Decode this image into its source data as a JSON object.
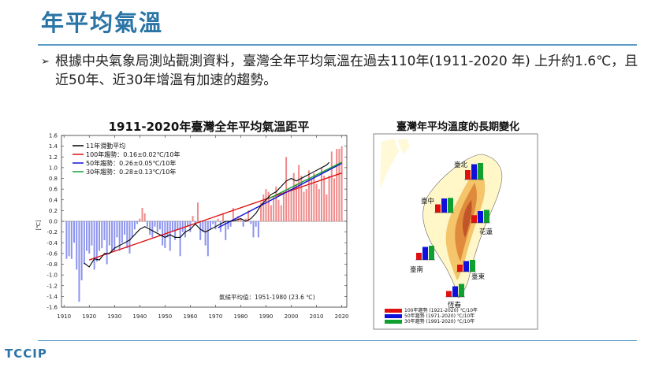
{
  "slide": {
    "title": "年平均氣溫",
    "bullet_mark": "➢",
    "bullet_text": "根據中央氣象局測站觀測資料，臺灣全年平均氣溫在過去110年(1911-2020 年) 上升約1.6℃，且近50年、近30年增溫有加速的趨勢。",
    "logo": "TCCIP"
  },
  "colors": {
    "title": "#2a74a6",
    "positive_bar": "#ef8a8a",
    "negative_bar": "#8c93ee",
    "trend_100": "#e01010",
    "trend_50": "#1010dd",
    "trend_30": "#10a030",
    "smooth": "#000000"
  },
  "chart_data": [
    {
      "type": "bar",
      "title": "1911-2020年臺灣全年平均氣溫距平",
      "xlabel": "",
      "ylabel": "[℃]",
      "xlim": [
        1909,
        2022
      ],
      "ylim": [
        -1.6,
        1.6
      ],
      "x_ticks": [
        1910,
        1920,
        1930,
        1940,
        1950,
        1960,
        1970,
        1980,
        1990,
        2000,
        2010,
        2020
      ],
      "y_ticks": [
        -1.6,
        -1.4,
        -1.2,
        -1.0,
        -0.8,
        -0.6,
        -0.4,
        -0.2,
        0.0,
        0.2,
        0.4,
        0.6,
        0.8,
        1.0,
        1.2,
        1.4,
        1.6
      ],
      "years": [
        1911,
        1912,
        1913,
        1914,
        1915,
        1916,
        1917,
        1918,
        1919,
        1920,
        1921,
        1922,
        1923,
        1924,
        1925,
        1926,
        1927,
        1928,
        1929,
        1930,
        1931,
        1932,
        1933,
        1934,
        1935,
        1936,
        1937,
        1938,
        1939,
        1940,
        1941,
        1942,
        1943,
        1944,
        1945,
        1946,
        1947,
        1948,
        1949,
        1950,
        1951,
        1952,
        1953,
        1954,
        1955,
        1956,
        1957,
        1958,
        1959,
        1960,
        1961,
        1962,
        1963,
        1964,
        1965,
        1966,
        1967,
        1968,
        1969,
        1970,
        1971,
        1972,
        1973,
        1974,
        1975,
        1976,
        1977,
        1978,
        1979,
        1980,
        1981,
        1982,
        1983,
        1984,
        1985,
        1986,
        1987,
        1988,
        1989,
        1990,
        1991,
        1992,
        1993,
        1994,
        1995,
        1996,
        1997,
        1998,
        1999,
        2000,
        2001,
        2002,
        2003,
        2004,
        2005,
        2006,
        2007,
        2008,
        2009,
        2010,
        2011,
        2012,
        2013,
        2014,
        2015,
        2016,
        2017,
        2018,
        2019,
        2020
      ],
      "anomalies": [
        -0.7,
        -0.65,
        -0.7,
        -0.4,
        -0.9,
        -1.5,
        -1.1,
        -0.8,
        -0.55,
        -0.6,
        -0.45,
        -0.9,
        -0.75,
        -0.55,
        -0.5,
        -0.35,
        -0.8,
        -0.45,
        -0.55,
        -0.55,
        -0.3,
        -0.55,
        -0.4,
        -0.25,
        -0.5,
        -0.6,
        -0.3,
        -0.15,
        -0.05,
        0.05,
        0.25,
        0.15,
        -0.1,
        -0.25,
        -0.3,
        -0.1,
        -0.2,
        -0.15,
        -0.45,
        -0.5,
        -0.3,
        -0.55,
        -0.2,
        -0.35,
        -0.15,
        -0.65,
        -0.2,
        -0.3,
        -0.1,
        -0.2,
        0.1,
        -0.05,
        0.35,
        -0.35,
        -0.2,
        -0.45,
        -0.65,
        -0.15,
        -0.05,
        -0.15,
        0.05,
        -0.2,
        0.15,
        -0.35,
        -0.15,
        -0.1,
        0.25,
        0.05,
        0.1,
        0.05,
        -0.1,
        0.05,
        0.2,
        -0.05,
        -0.3,
        -0.1,
        -0.3,
        0.35,
        0.5,
        0.6,
        0.55,
        0.3,
        0.45,
        0.65,
        0.4,
        0.3,
        0.55,
        1.2,
        0.6,
        0.6,
        0.9,
        0.7,
        1.05,
        0.85,
        0.55,
        0.6,
        0.95,
        0.8,
        0.9,
        0.7,
        0.6,
        1.0,
        0.85,
        0.5,
        0.85,
        1.3,
        0.8,
        1.35,
        1.35,
        1.4
      ],
      "smooth_11yr": [
        [
          1918,
          -0.78
        ],
        [
          1920,
          -0.85
        ],
        [
          1922,
          -0.7
        ],
        [
          1924,
          -0.72
        ],
        [
          1926,
          -0.6
        ],
        [
          1928,
          -0.6
        ],
        [
          1930,
          -0.5
        ],
        [
          1932,
          -0.45
        ],
        [
          1934,
          -0.4
        ],
        [
          1936,
          -0.35
        ],
        [
          1938,
          -0.25
        ],
        [
          1940,
          -0.15
        ],
        [
          1942,
          -0.1
        ],
        [
          1944,
          -0.15
        ],
        [
          1946,
          -0.2
        ],
        [
          1948,
          -0.25
        ],
        [
          1950,
          -0.3
        ],
        [
          1952,
          -0.25
        ],
        [
          1954,
          -0.3
        ],
        [
          1956,
          -0.3
        ],
        [
          1958,
          -0.2
        ],
        [
          1960,
          -0.15
        ],
        [
          1962,
          -0.05
        ],
        [
          1964,
          -0.15
        ],
        [
          1966,
          -0.2
        ],
        [
          1968,
          -0.15
        ],
        [
          1970,
          -0.1
        ],
        [
          1972,
          -0.05
        ],
        [
          1974,
          0.0
        ],
        [
          1976,
          0.0
        ],
        [
          1978,
          0.02
        ],
        [
          1980,
          0.05
        ],
        [
          1982,
          0.0
        ],
        [
          1984,
          0.05
        ],
        [
          1986,
          0.15
        ],
        [
          1988,
          0.3
        ],
        [
          1990,
          0.4
        ],
        [
          1992,
          0.5
        ],
        [
          1994,
          0.55
        ],
        [
          1996,
          0.65
        ],
        [
          1998,
          0.75
        ],
        [
          2000,
          0.8
        ],
        [
          2002,
          0.75
        ],
        [
          2004,
          0.8
        ],
        [
          2006,
          0.85
        ],
        [
          2008,
          0.9
        ],
        [
          2010,
          0.95
        ],
        [
          2012,
          1.0
        ],
        [
          2014,
          1.05
        ],
        [
          2015,
          1.1
        ]
      ],
      "legend": [
        {
          "label": "11年滑動平均",
          "color": "#000000"
        },
        {
          "label": "100年趨勢：0.16±0.02℃/10年",
          "color": "#e01010"
        },
        {
          "label": "50年趨勢：0.26±0.05℃/10年",
          "color": "#1010dd"
        },
        {
          "label": "30年趨勢：0.28±0.13℃/10年",
          "color": "#10a030"
        }
      ],
      "trends": [
        {
          "name": "100年趨勢",
          "start": [
            1920,
            -0.72
          ],
          "end": [
            2020,
            0.9
          ]
        },
        {
          "name": "50年趨勢",
          "start": [
            1971,
            -0.12
          ],
          "end": [
            2020,
            1.08
          ]
        },
        {
          "name": "30年趨勢",
          "start": [
            1991,
            0.42
          ],
          "end": [
            2020,
            1.1
          ]
        }
      ],
      "note": "氣候平均值：1951-1980 (23.6 ℃)"
    },
    {
      "type": "bar",
      "title": "臺灣年平均溫度的長期變化",
      "stations": [
        {
          "name": "臺北",
          "values": [
            0.16,
            0.26,
            0.28
          ]
        },
        {
          "name": "臺中",
          "values": [
            0.14,
            0.24,
            0.25
          ]
        },
        {
          "name": "花蓮",
          "values": [
            0.13,
            0.2,
            0.22
          ]
        },
        {
          "name": "臺南",
          "values": [
            0.12,
            0.22,
            0.24
          ]
        },
        {
          "name": "臺東",
          "values": [
            0.12,
            0.18,
            0.2
          ]
        },
        {
          "name": "恆春",
          "values": [
            0.1,
            0.18,
            0.22
          ]
        }
      ],
      "legend": [
        {
          "label": "100年趨勢 (1921-2020) ℃/10年",
          "color": "#e01010"
        },
        {
          "label": "50年趨勢 (1971-2020) ℃/10年",
          "color": "#1010dd"
        },
        {
          "label": "30年趨勢 (1991-2020) ℃/10年",
          "color": "#10a030"
        }
      ]
    }
  ]
}
